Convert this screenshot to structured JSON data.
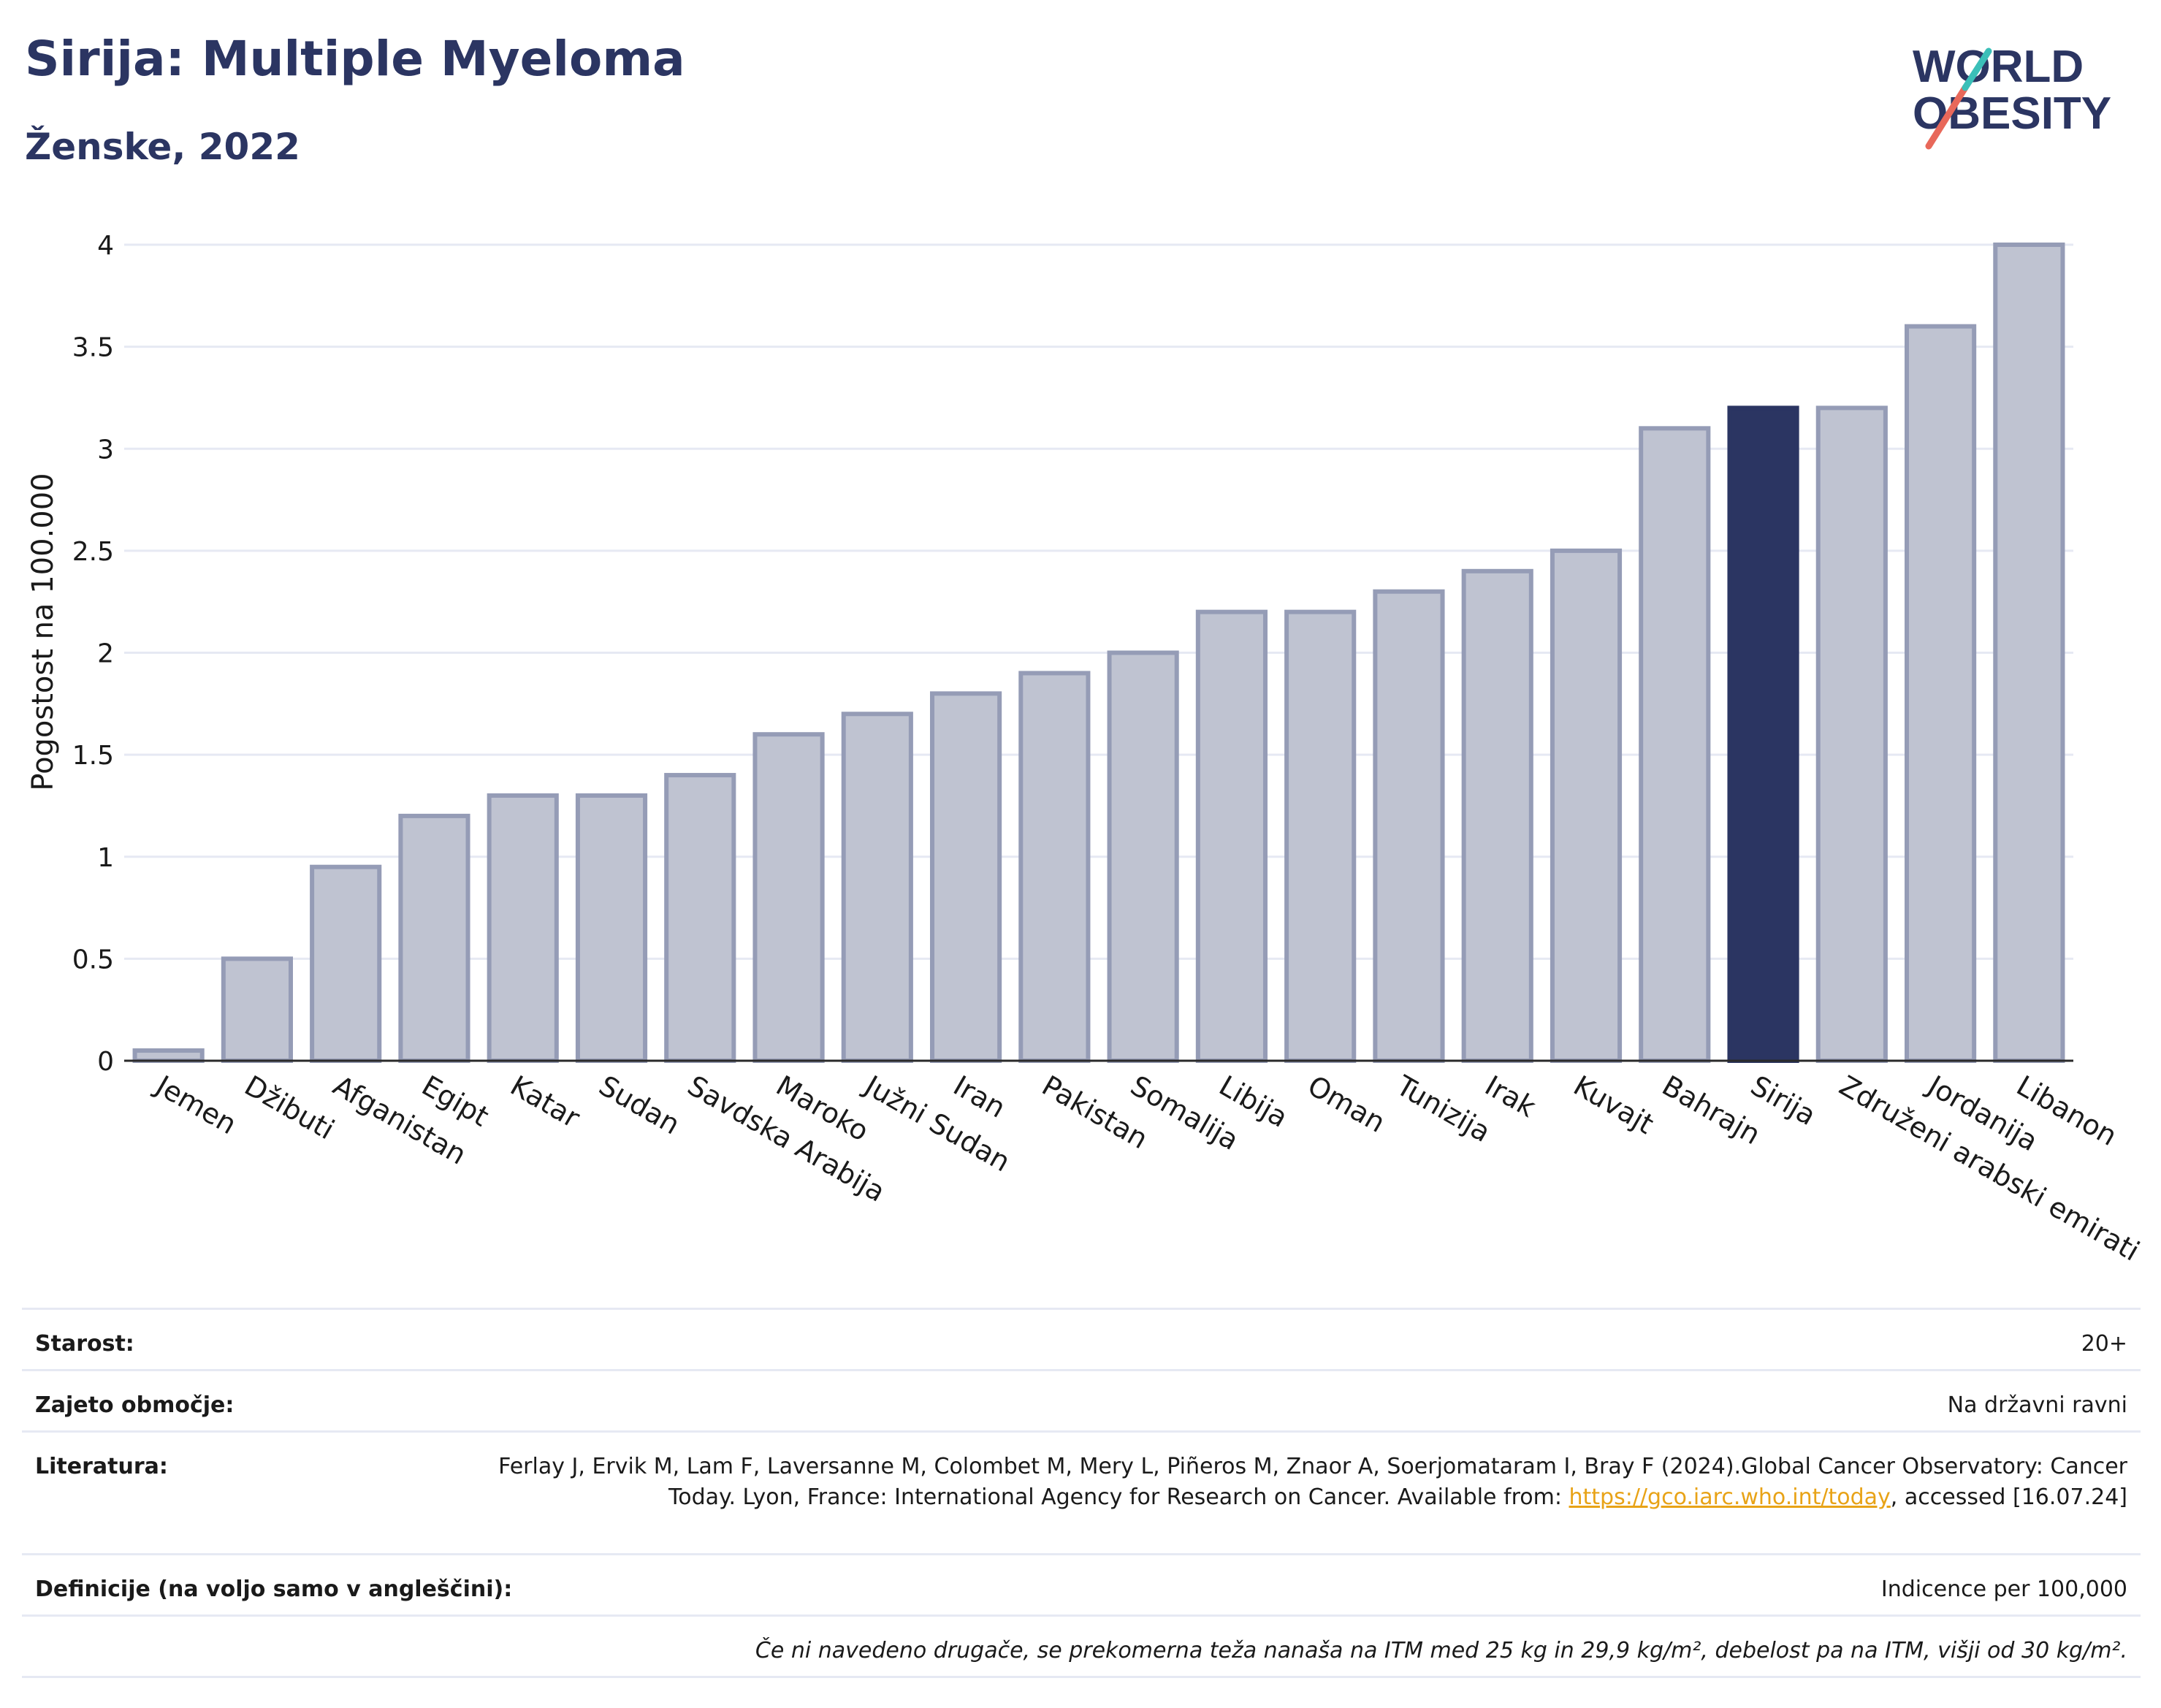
{
  "header": {
    "title": "Sirija: Multiple Myeloma",
    "subtitle": "Ženske, 2022",
    "logo_line1": "WORLD",
    "logo_line2": "OBESITY"
  },
  "chart_data": {
    "type": "bar",
    "ylabel": "Pogostost na 100.000",
    "ylim": [
      0,
      4
    ],
    "yticks": [
      "0",
      "0.5",
      "1",
      "1.5",
      "2",
      "2.5",
      "3",
      "3.5",
      "4"
    ],
    "categories": [
      "Jemen",
      "Džibuti",
      "Afganistan",
      "Egipt",
      "Katar",
      "Sudan",
      "Savdska Arabija",
      "Maroko",
      "Južni Sudan",
      "Iran",
      "Pakistan",
      "Somalija",
      "Libija",
      "Oman",
      "Tunizija",
      "Irak",
      "Kuvajt",
      "Bahrajn",
      "Sirija",
      "Združeni arabski emirati",
      "Jordanija",
      "Libanon"
    ],
    "values": [
      0.05,
      0.5,
      0.95,
      1.2,
      1.3,
      1.3,
      1.4,
      1.6,
      1.7,
      1.8,
      1.9,
      2.0,
      2.2,
      2.2,
      2.3,
      2.4,
      2.5,
      3.1,
      3.2,
      3.2,
      3.6,
      4.0
    ],
    "highlight": "Sirija",
    "colors": {
      "bar": "#bfc3d1",
      "bar_border": "#959cb6",
      "highlight": "#2b3562",
      "grid": "#e6e9f3"
    },
    "grid": true
  },
  "info": {
    "age_label": "Starost:",
    "age_value": "20+",
    "area_label": "Zajeto območje:",
    "area_value": "Na državni ravni",
    "lit_label": "Literatura:",
    "lit_text1": "Ferlay J, Ervik M, Lam F, Laversanne M, Colombet M, Mery L, Piñeros M, Znaor A, Soerjomataram I, Bray F (2024).Global Cancer Observatory: Cancer Today. Lyon, France: International Agency for Research on Cancer. Available from: ",
    "lit_link": "https://gco.iarc.who.int/today",
    "lit_text2": ", accessed [16.07.24]",
    "def_label": "Definicije (na voljo samo v angleščini):",
    "def_value": "Indicence per 100,000",
    "note": "Če ni navedeno drugače, se prekomerna teža nanaša na ITM med 25 kg in 29,9 kg/m², debelost pa na ITM, višji od 30 kg/m²."
  }
}
